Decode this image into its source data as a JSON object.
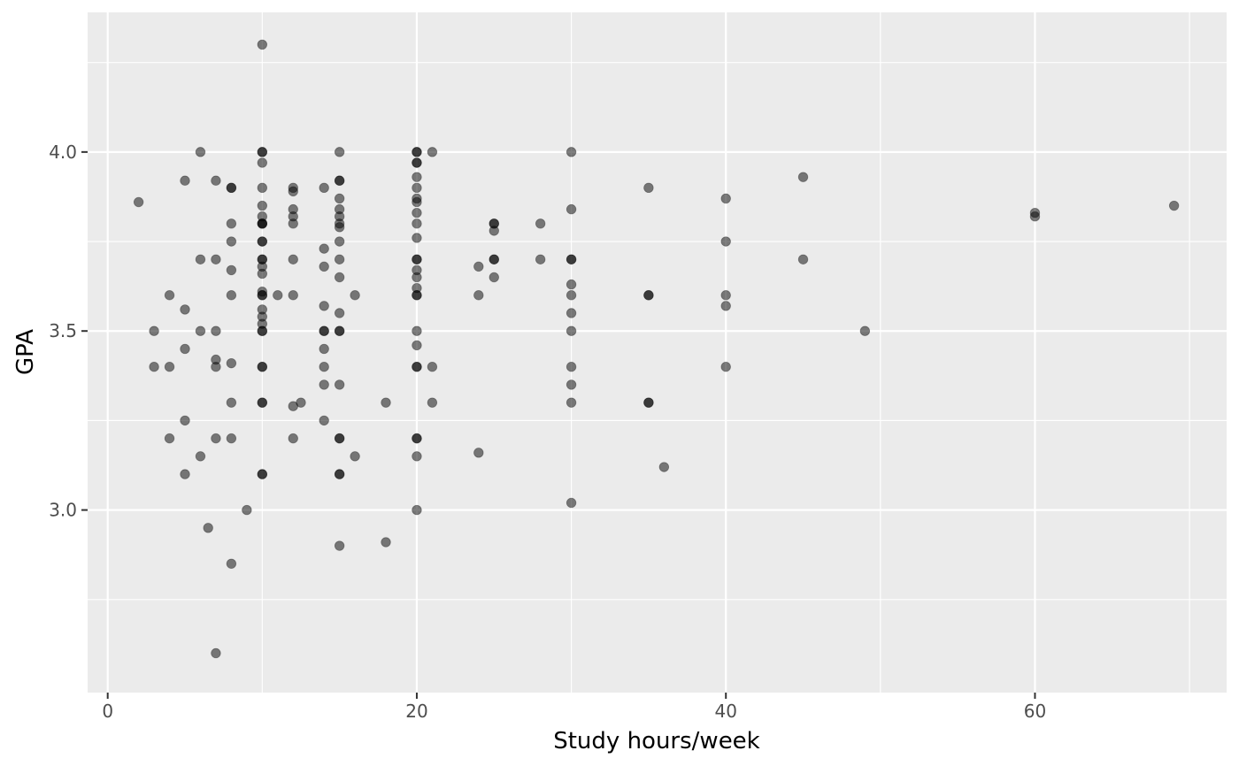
{
  "chart_data": {
    "type": "scatter",
    "title": "",
    "xlabel": "Study hours/week",
    "ylabel": "GPA",
    "xlim": [
      -1.3,
      72.4
    ],
    "ylim": [
      2.49,
      4.39
    ],
    "x_ticks": [
      0,
      20,
      40,
      60
    ],
    "x_tick_labels": [
      "0",
      "20",
      "40",
      "60"
    ],
    "x_minor_ticks": [
      10,
      30,
      50,
      70
    ],
    "y_ticks": [
      3.0,
      3.5,
      4.0
    ],
    "y_tick_labels": [
      "3.0",
      "3.5",
      "4.0"
    ],
    "y_minor_ticks": [
      2.75,
      3.25,
      3.75,
      4.25
    ],
    "grid": true,
    "legend": "none",
    "colors": {
      "panel": "#ebebeb",
      "grid": "#ffffff",
      "point_fill": "#000000",
      "point_opacity": 0.5,
      "tick_text": "#4d4d4d",
      "tick_mark": "#333333"
    },
    "points": [
      [
        10,
        4.3
      ],
      [
        2,
        3.86
      ],
      [
        3,
        3.5
      ],
      [
        3,
        3.4
      ],
      [
        4,
        3.6
      ],
      [
        4,
        3.4
      ],
      [
        4,
        3.2
      ],
      [
        5,
        3.92
      ],
      [
        5,
        3.56
      ],
      [
        5,
        3.45
      ],
      [
        5,
        3.25
      ],
      [
        5,
        3.1
      ],
      [
        6,
        4.0
      ],
      [
        6,
        3.7
      ],
      [
        6,
        3.5
      ],
      [
        6,
        3.15
      ],
      [
        6.5,
        2.95
      ],
      [
        7,
        3.92
      ],
      [
        7,
        3.7
      ],
      [
        7,
        3.5
      ],
      [
        7,
        3.42
      ],
      [
        7,
        3.4
      ],
      [
        7,
        3.2
      ],
      [
        7,
        2.6
      ],
      [
        8,
        3.9
      ],
      [
        8,
        3.9
      ],
      [
        8,
        3.8
      ],
      [
        8,
        3.75
      ],
      [
        8,
        3.67
      ],
      [
        8,
        3.6
      ],
      [
        8,
        3.41
      ],
      [
        8,
        3.3
      ],
      [
        8,
        3.2
      ],
      [
        8,
        2.85
      ],
      [
        9,
        3.0
      ],
      [
        10,
        4.0
      ],
      [
        10,
        4.0
      ],
      [
        10,
        3.97
      ],
      [
        10,
        3.9
      ],
      [
        10,
        3.85
      ],
      [
        10,
        3.82
      ],
      [
        10,
        3.8
      ],
      [
        10,
        3.8
      ],
      [
        10,
        3.8
      ],
      [
        10,
        3.75
      ],
      [
        10,
        3.75
      ],
      [
        10,
        3.7
      ],
      [
        10,
        3.7
      ],
      [
        10,
        3.68
      ],
      [
        10,
        3.66
      ],
      [
        10,
        3.61
      ],
      [
        10,
        3.6
      ],
      [
        10,
        3.6
      ],
      [
        10,
        3.56
      ],
      [
        10,
        3.54
      ],
      [
        10,
        3.52
      ],
      [
        10,
        3.5
      ],
      [
        10,
        3.5
      ],
      [
        10,
        3.4
      ],
      [
        10,
        3.4
      ],
      [
        10,
        3.3
      ],
      [
        10,
        3.3
      ],
      [
        10,
        3.1
      ],
      [
        10,
        3.1
      ],
      [
        11,
        3.6
      ],
      [
        12,
        3.9
      ],
      [
        12,
        3.89
      ],
      [
        12,
        3.84
      ],
      [
        12,
        3.82
      ],
      [
        12,
        3.8
      ],
      [
        12,
        3.7
      ],
      [
        12,
        3.6
      ],
      [
        12,
        3.29
      ],
      [
        12,
        3.2
      ],
      [
        12.5,
        3.3
      ],
      [
        14,
        3.9
      ],
      [
        14,
        3.73
      ],
      [
        14,
        3.68
      ],
      [
        14,
        3.57
      ],
      [
        14,
        3.5
      ],
      [
        14,
        3.5
      ],
      [
        14,
        3.45
      ],
      [
        14,
        3.4
      ],
      [
        14,
        3.35
      ],
      [
        14,
        3.25
      ],
      [
        15,
        4.0
      ],
      [
        15,
        3.92
      ],
      [
        15,
        3.92
      ],
      [
        15,
        3.87
      ],
      [
        15,
        3.84
      ],
      [
        15,
        3.82
      ],
      [
        15,
        3.8
      ],
      [
        15,
        3.79
      ],
      [
        15,
        3.75
      ],
      [
        15,
        3.7
      ],
      [
        15,
        3.65
      ],
      [
        15,
        3.55
      ],
      [
        15,
        3.5
      ],
      [
        15,
        3.5
      ],
      [
        15,
        3.35
      ],
      [
        15,
        3.2
      ],
      [
        15,
        3.2
      ],
      [
        15,
        3.1
      ],
      [
        15,
        3.1
      ],
      [
        15,
        2.9
      ],
      [
        16,
        3.6
      ],
      [
        16,
        3.15
      ],
      [
        18,
        3.3
      ],
      [
        18,
        2.91
      ],
      [
        20,
        4.0
      ],
      [
        20,
        4.0
      ],
      [
        20,
        3.97
      ],
      [
        20,
        3.97
      ],
      [
        20,
        3.93
      ],
      [
        20,
        3.9
      ],
      [
        20,
        3.87
      ],
      [
        20,
        3.86
      ],
      [
        20,
        3.83
      ],
      [
        20,
        3.8
      ],
      [
        20,
        3.76
      ],
      [
        20,
        3.7
      ],
      [
        20,
        3.7
      ],
      [
        20,
        3.67
      ],
      [
        20,
        3.65
      ],
      [
        20,
        3.62
      ],
      [
        20,
        3.6
      ],
      [
        20,
        3.6
      ],
      [
        20,
        3.5
      ],
      [
        20,
        3.46
      ],
      [
        20,
        3.4
      ],
      [
        20,
        3.4
      ],
      [
        20,
        3.2
      ],
      [
        20,
        3.2
      ],
      [
        20,
        3.15
      ],
      [
        20,
        3.0
      ],
      [
        21,
        4.0
      ],
      [
        21,
        3.4
      ],
      [
        21,
        3.3
      ],
      [
        24,
        3.68
      ],
      [
        24,
        3.6
      ],
      [
        24,
        3.16
      ],
      [
        25,
        3.8
      ],
      [
        25,
        3.8
      ],
      [
        25,
        3.78
      ],
      [
        25,
        3.7
      ],
      [
        25,
        3.7
      ],
      [
        25,
        3.65
      ],
      [
        28,
        3.8
      ],
      [
        28,
        3.7
      ],
      [
        30,
        4.0
      ],
      [
        30,
        3.84
      ],
      [
        30,
        3.7
      ],
      [
        30,
        3.7
      ],
      [
        30,
        3.63
      ],
      [
        30,
        3.6
      ],
      [
        30,
        3.55
      ],
      [
        30,
        3.5
      ],
      [
        30,
        3.4
      ],
      [
        30,
        3.35
      ],
      [
        30,
        3.3
      ],
      [
        30,
        3.02
      ],
      [
        35,
        3.9
      ],
      [
        35,
        3.6
      ],
      [
        35,
        3.6
      ],
      [
        35,
        3.3
      ],
      [
        35,
        3.3
      ],
      [
        36,
        3.12
      ],
      [
        40,
        3.87
      ],
      [
        40,
        3.75
      ],
      [
        40,
        3.6
      ],
      [
        40,
        3.57
      ],
      [
        40,
        3.4
      ],
      [
        45,
        3.93
      ],
      [
        45,
        3.7
      ],
      [
        49,
        3.5
      ],
      [
        60,
        3.83
      ],
      [
        60,
        3.82
      ],
      [
        69,
        3.85
      ]
    ]
  }
}
